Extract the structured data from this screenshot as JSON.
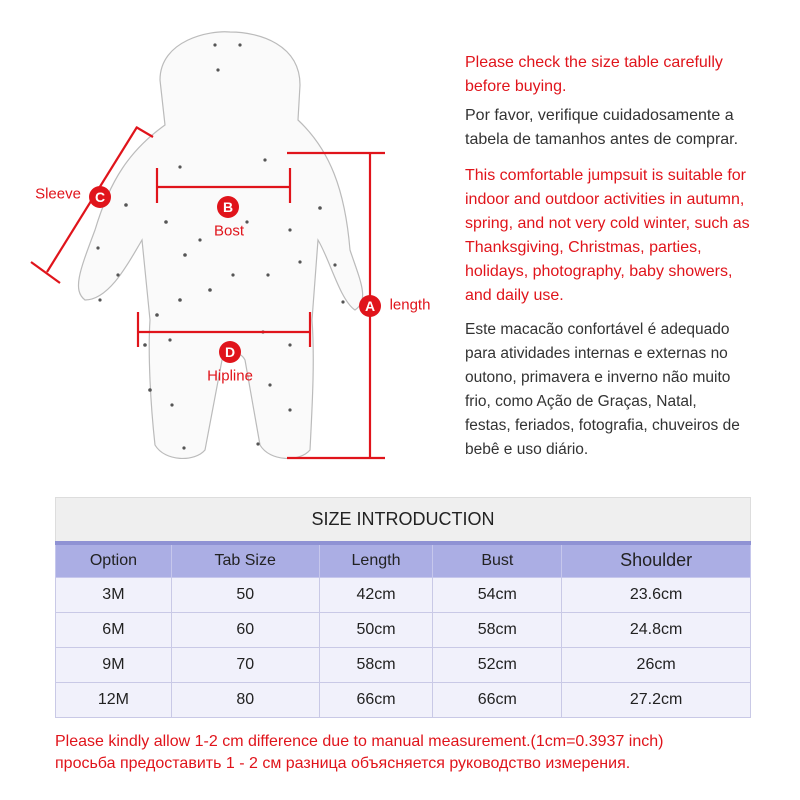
{
  "diagram": {
    "labels": {
      "sleeve": "Sleeve",
      "bust": "Bost",
      "length": "length",
      "hipline": "Hipline"
    },
    "markers": {
      "a": "A",
      "b": "B",
      "c": "C",
      "d": "D"
    },
    "line_color": "#e0141b"
  },
  "description": {
    "en_check": [
      "Please check the size table carefully",
      "before buying."
    ],
    "pt_check": [
      "Por favor, verifique cuidadosamente a",
      "tabela de tamanhos antes de comprar."
    ],
    "en_desc": [
      "This comfortable jumpsuit is suitable for",
      "indoor and outdoor activities in autumn,",
      "spring, and not very cold winter, such as",
      "Thanksgiving, Christmas, parties,",
      "holidays, photography, baby showers,",
      "and daily use."
    ],
    "pt_desc": [
      "Este macacão confortável é adequado",
      "para atividades internas e externas no",
      "outono, primavera e inverno não muito",
      "frio, como Ação de Graças, Natal,",
      "festas, feriados, fotografia, chuveiros de",
      "bebê e uso diário."
    ]
  },
  "size_table": {
    "title": "SIZE INTRODUCTION",
    "headers": [
      "Option",
      "Tab Size",
      "Length",
      "Bust",
      "Shoulder"
    ],
    "rows": [
      [
        "3M",
        "50",
        "42cm",
        "54cm",
        "23.6cm"
      ],
      [
        "6M",
        "60",
        "50cm",
        "58cm",
        "24.8cm"
      ],
      [
        "9M",
        "70",
        "58cm",
        "52cm",
        "26cm"
      ],
      [
        "12M",
        "80",
        "66cm",
        "66cm",
        "27.2cm"
      ]
    ]
  },
  "footer": {
    "en": "Please kindly allow 1-2 cm difference due to manual measurement.(1cm=0.3937 inch)",
    "ru": "просьба предоставить 1 - 2 см разница объясняется руководство измерения."
  }
}
